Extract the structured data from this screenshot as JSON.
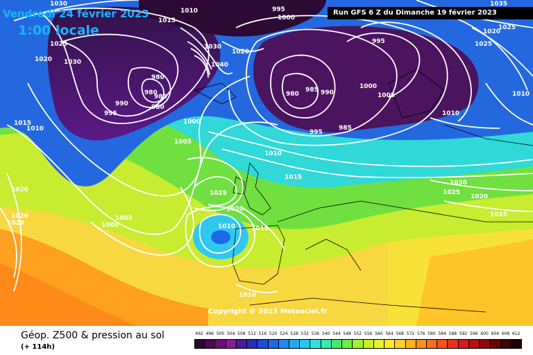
{
  "header": {
    "valid_date": "Vendredi 24 février 2023",
    "valid_time": "1:00 locale",
    "run_info": "Run GFS 6 Z du Dimanche 19 février 2023"
  },
  "map": {
    "copyright": "Copyright © 2023 Meteociel.fr",
    "isobar_labels": [
      {
        "text": "1030"
      },
      {
        "text": "1010"
      },
      {
        "text": "1015"
      },
      {
        "text": "1025"
      },
      {
        "text": "1020"
      },
      {
        "text": "1030"
      },
      {
        "text": "1035"
      },
      {
        "text": "1025"
      },
      {
        "text": "1020"
      },
      {
        "text": "1020"
      },
      {
        "text": "1025"
      },
      {
        "text": "1030"
      },
      {
        "text": "1040"
      },
      {
        "text": "980"
      },
      {
        "text": "985"
      },
      {
        "text": "980"
      },
      {
        "text": "980"
      },
      {
        "text": "990"
      },
      {
        "text": "995"
      },
      {
        "text": "995"
      },
      {
        "text": "1000"
      },
      {
        "text": "980"
      },
      {
        "text": "985"
      },
      {
        "text": "990"
      },
      {
        "text": "995"
      },
      {
        "text": "1000"
      },
      {
        "text": "1005"
      },
      {
        "text": "995"
      },
      {
        "text": "985"
      },
      {
        "text": "1010"
      },
      {
        "text": "1010"
      },
      {
        "text": "1000"
      },
      {
        "text": "1005"
      },
      {
        "text": "1010"
      },
      {
        "text": "1015"
      },
      {
        "text": "1015"
      },
      {
        "text": "1010"
      },
      {
        "text": "1020"
      },
      {
        "text": "1020"
      },
      {
        "text": "1020"
      },
      {
        "text": "1000"
      },
      {
        "text": "1005"
      },
      {
        "text": "1025"
      },
      {
        "text": "1020"
      },
      {
        "text": "1010"
      },
      {
        "text": "1015"
      },
      {
        "text": "1010"
      },
      {
        "text": "1030"
      },
      {
        "text": "1025"
      },
      {
        "text": "1020"
      },
      {
        "text": "1025"
      }
    ]
  },
  "footer": {
    "title": "Géop. Z500 & pression au sol",
    "lead_time": "(+ 114h)"
  },
  "scale": {
    "ticks": [
      "492",
      "496",
      "500",
      "504",
      "508",
      "512",
      "516",
      "520",
      "524",
      "528",
      "532",
      "536",
      "540",
      "544",
      "548",
      "552",
      "556",
      "560",
      "564",
      "568",
      "572",
      "576",
      "580",
      "584",
      "588",
      "592",
      "596",
      "600",
      "604",
      "608",
      "612"
    ],
    "colors": [
      "#2c0a32",
      "#4a0a52",
      "#6c0f75",
      "#8a1b93",
      "#4a1aa0",
      "#2a2ab8",
      "#1e4ad8",
      "#1a6ae8",
      "#1f8af0",
      "#22aaf4",
      "#28c8f4",
      "#30e0e0",
      "#38e8b0",
      "#46e870",
      "#70ec40",
      "#a0f030",
      "#c8f028",
      "#e8f030",
      "#f8e830",
      "#ffd028",
      "#ffb020",
      "#ff9018",
      "#ff7018",
      "#f85018",
      "#e83018",
      "#d81818",
      "#b81010",
      "#900808",
      "#680404",
      "#400202",
      "#200000"
    ]
  },
  "background_fields": {
    "description_colors": {
      "deep_low": "#3e0a48",
      "low": "#5a1a78",
      "mid_blue": "#2060e0",
      "cyan": "#30d0e8",
      "green": "#60e050",
      "yellow_green": "#c8ec30",
      "yellow": "#f8e440",
      "orange": "#ff9a20",
      "deep_orange": "#ff7a10"
    }
  }
}
